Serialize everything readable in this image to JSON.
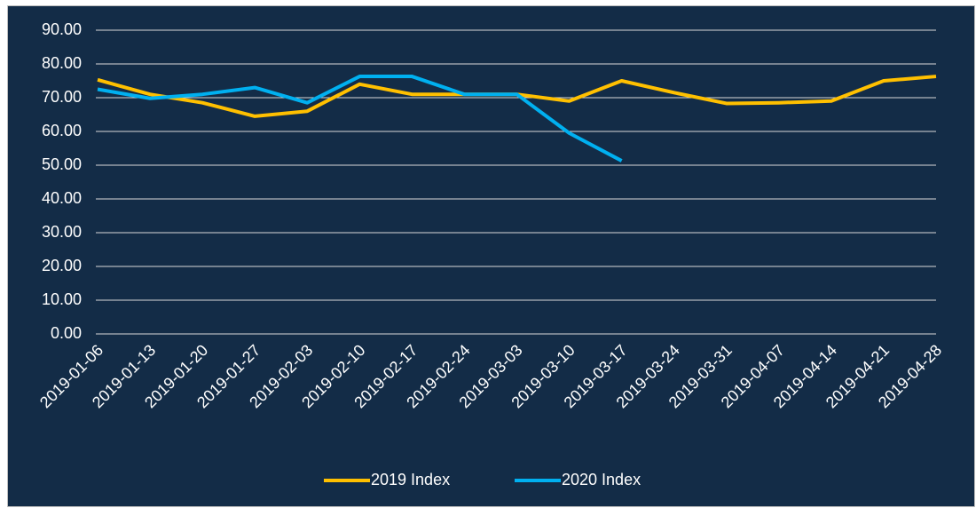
{
  "chart_data": {
    "type": "line",
    "categories": [
      "2019-01-06",
      "2019-01-13",
      "2019-01-20",
      "2019-01-27",
      "2019-02-03",
      "2019-02-10",
      "2019-02-17",
      "2019-02-24",
      "2019-03-03",
      "2019-03-10",
      "2019-03-17",
      "2019-03-24",
      "2019-03-31",
      "2019-04-07",
      "2019-04-14",
      "2019-04-21",
      "2019-04-28"
    ],
    "series": [
      {
        "name": "2019 Index",
        "color": "#ffc000",
        "values": [
          75.3,
          71,
          68.5,
          64.5,
          66,
          74,
          71,
          71,
          71,
          69,
          75,
          71.5,
          68.3,
          68.5,
          69,
          75,
          76.3
        ]
      },
      {
        "name": "2020 Index",
        "color": "#00b0f0",
        "values": [
          72.5,
          69.8,
          71,
          73,
          68.5,
          76.3,
          76.3,
          71,
          71,
          59.5,
          51.3,
          null,
          null,
          null,
          null,
          null,
          null
        ]
      }
    ],
    "ylim": [
      0,
      90
    ],
    "yticks": [
      {
        "value": 0,
        "label": "0.00"
      },
      {
        "value": 10,
        "label": "10.00"
      },
      {
        "value": 20,
        "label": "20.00"
      },
      {
        "value": 30,
        "label": "30.00"
      },
      {
        "value": 40,
        "label": "40.00"
      },
      {
        "value": 50,
        "label": "50.00"
      },
      {
        "value": 60,
        "label": "60.00"
      },
      {
        "value": 70,
        "label": "70.00"
      },
      {
        "value": 80,
        "label": "80.00"
      },
      {
        "value": 90,
        "label": "90.00"
      }
    ],
    "grid": true,
    "legend": "bottom"
  }
}
